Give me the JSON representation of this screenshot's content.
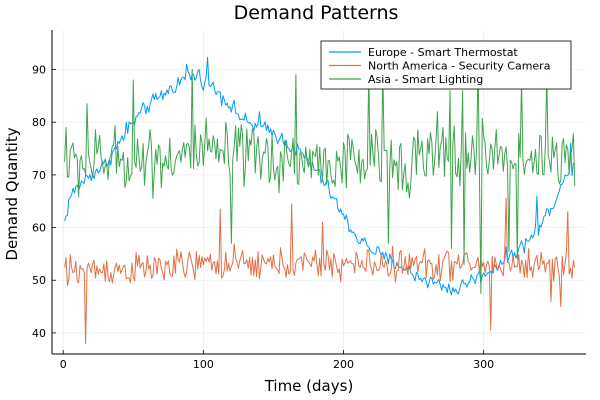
{
  "chart_data": {
    "type": "line",
    "title": "Demand Patterns",
    "xlabel": "Time (days)",
    "ylabel": "Demand Quantity",
    "xlim": [
      -8,
      373
    ],
    "ylim": [
      36,
      97.5
    ],
    "xticks": [
      0,
      100,
      200,
      300
    ],
    "yticks": [
      40,
      50,
      60,
      70,
      80,
      90
    ],
    "grid": true,
    "legend_position": "top-right",
    "x_start": 1,
    "x_end": 365,
    "series": [
      {
        "name": "Europe - Smart Thermostat",
        "color": "#009af9",
        "anchors": [
          [
            1,
            61
          ],
          [
            5,
            66
          ],
          [
            15,
            69
          ],
          [
            30,
            72
          ],
          [
            40,
            76
          ],
          [
            50,
            80
          ],
          [
            60,
            83
          ],
          [
            70,
            85
          ],
          [
            80,
            87
          ],
          [
            90,
            89
          ],
          [
            100,
            88
          ],
          [
            110,
            86
          ],
          [
            120,
            83
          ],
          [
            130,
            80
          ],
          [
            140,
            79
          ],
          [
            150,
            78
          ],
          [
            160,
            76
          ],
          [
            170,
            74
          ],
          [
            180,
            71
          ],
          [
            190,
            67
          ],
          [
            200,
            62
          ],
          [
            210,
            58
          ],
          [
            220,
            56
          ],
          [
            230,
            54
          ],
          [
            240,
            53
          ],
          [
            250,
            51
          ],
          [
            260,
            50
          ],
          [
            270,
            49
          ],
          [
            280,
            48
          ],
          [
            290,
            50
          ],
          [
            300,
            51
          ],
          [
            310,
            53
          ],
          [
            320,
            55
          ],
          [
            330,
            57
          ],
          [
            340,
            60
          ],
          [
            350,
            65
          ],
          [
            360,
            70
          ],
          [
            365,
            73
          ]
        ],
        "noise": 2.2,
        "spikes": [
          [
            103,
            92.3
          ],
          [
            97,
            90
          ],
          [
            88,
            91
          ],
          [
            45,
            80
          ],
          [
            140,
            82
          ],
          [
            338,
            66
          ],
          [
            362,
            76
          ]
        ]
      },
      {
        "name": "North America - Security Camera",
        "color": "#e26f46",
        "anchors": [
          [
            1,
            52
          ],
          [
            50,
            52
          ],
          [
            100,
            53
          ],
          [
            150,
            53
          ],
          [
            200,
            53
          ],
          [
            250,
            53
          ],
          [
            300,
            53
          ],
          [
            365,
            53
          ]
        ],
        "noise": 4.5,
        "spikes": [
          [
            16,
            38
          ],
          [
            3,
            49
          ],
          [
            112,
            63.5
          ],
          [
            163,
            64.5
          ],
          [
            305,
            40.5
          ],
          [
            316,
            65.5
          ],
          [
            348,
            46
          ],
          [
            355,
            45
          ],
          [
            360,
            63
          ],
          [
            185,
            61
          ]
        ]
      },
      {
        "name": "Asia - Smart Lighting",
        "color": "#3da44d",
        "anchors": [
          [
            1,
            72
          ],
          [
            50,
            73
          ],
          [
            100,
            74
          ],
          [
            150,
            73
          ],
          [
            200,
            72
          ],
          [
            250,
            73
          ],
          [
            300,
            74
          ],
          [
            365,
            73
          ]
        ],
        "noise": 9,
        "spikes": [
          [
            2,
            79
          ],
          [
            17,
            83.5
          ],
          [
            50,
            88
          ],
          [
            92,
            90
          ],
          [
            166,
            89
          ],
          [
            218,
            89.5
          ],
          [
            228,
            90.5
          ],
          [
            267,
            82
          ],
          [
            276,
            86
          ],
          [
            285,
            86
          ],
          [
            296,
            91
          ],
          [
            327,
            88
          ],
          [
            345,
            89
          ],
          [
            120,
            57
          ],
          [
            232,
            57
          ],
          [
            277,
            56
          ],
          [
            286,
            53
          ],
          [
            298,
            47.5
          ],
          [
            318,
            55.5
          ],
          [
            324,
            54
          ]
        ]
      }
    ]
  }
}
